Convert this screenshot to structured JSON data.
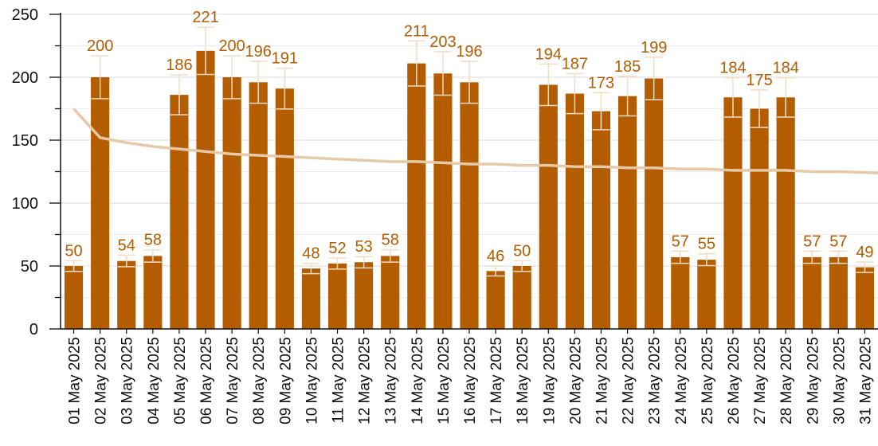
{
  "chart_data": {
    "type": "bar",
    "categories": [
      "01 May 2025",
      "02 May 2025",
      "03 May 2025",
      "04 May 2025",
      "05 May 2025",
      "06 May 2025",
      "07 May 2025",
      "08 May 2025",
      "09 May 2025",
      "10 May 2025",
      "11 May 2025",
      "12 May 2025",
      "13 May 2025",
      "14 May 2025",
      "15 May 2025",
      "16 May 2025",
      "17 May 2025",
      "18 May 2025",
      "19 May 2025",
      "20 May 2025",
      "21 May 2025",
      "22 May 2025",
      "23 May 2025",
      "24 May 2025",
      "25 May 2025",
      "26 May 2025",
      "27 May 2025",
      "28 May 2025",
      "29 May 2025",
      "30 May 2025",
      "31 May 2025"
    ],
    "values": [
      50,
      200,
      54,
      58,
      186,
      221,
      200,
      196,
      191,
      48,
      52,
      53,
      58,
      211,
      203,
      196,
      46,
      50,
      194,
      187,
      173,
      185,
      199,
      57,
      55,
      184,
      175,
      184,
      57,
      57,
      49
    ],
    "data_labels": [
      "50",
      "200",
      "54",
      "58",
      "186",
      "221",
      "200",
      "196",
      "191",
      "48",
      "52",
      "53",
      "58",
      "211",
      "203",
      "196",
      "46",
      "50",
      "194",
      "187",
      "173",
      "185",
      "199",
      "57",
      "55",
      "184",
      "175",
      "184",
      "57",
      "57",
      "49"
    ],
    "error_bars": true,
    "trend_line": {
      "type": "logarithmic",
      "values": [
        175,
        152,
        148,
        145,
        143,
        141,
        139,
        138,
        137,
        136,
        135,
        134,
        133,
        133,
        132,
        131,
        131,
        130,
        130,
        129,
        129,
        128,
        128,
        127,
        127,
        126,
        126,
        126,
        125,
        125,
        124
      ]
    },
    "title": "",
    "xlabel": "",
    "ylabel": "",
    "ylim": [
      0,
      250
    ],
    "yticks": [
      "0",
      "50",
      "100",
      "150",
      "200",
      "250"
    ],
    "grid": true,
    "legend": "none",
    "colors": {
      "bar": "#b35c00",
      "label": "#b35c00",
      "trend": "#e6c9a8",
      "grid": "#d9d9d9",
      "error": "#f1dcc4"
    }
  }
}
